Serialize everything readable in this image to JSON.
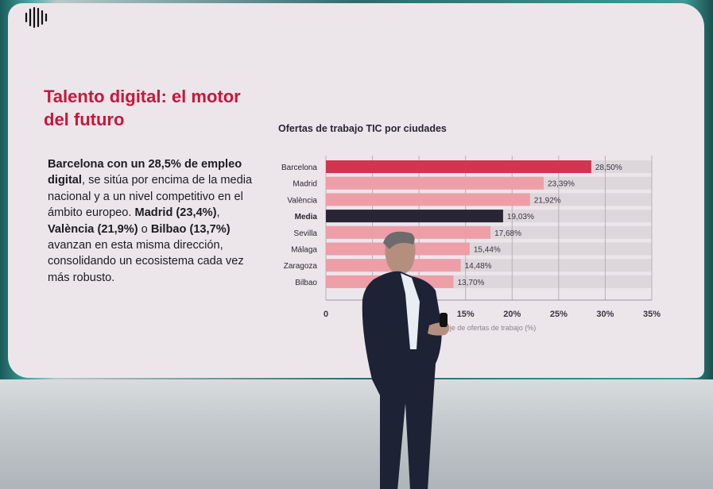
{
  "slide": {
    "title": "Talento digital: el motor del futuro",
    "paragraph": [
      {
        "text": "Barcelona con un 28,5% de empleo digital",
        "bold": true
      },
      {
        "text": ", se sitúa por encima de la media nacional y a un nivel competitivo en el ámbito europeo. ",
        "bold": false
      },
      {
        "text": "Madrid (23,4%)",
        "bold": true
      },
      {
        "text": ", ",
        "bold": false
      },
      {
        "text": "València (21,9%)",
        "bold": true
      },
      {
        "text": " o ",
        "bold": false
      },
      {
        "text": "Bilbao (13,7%)",
        "bold": true
      },
      {
        "text": " avanzan en esta misma dirección, consolidando un ecosistema cada vez más robusto.",
        "bold": false
      }
    ]
  },
  "colors": {
    "highlight": "#d3344f",
    "bar": "#ee9ea7",
    "average": "#2a2535",
    "track": "#ddd6db",
    "title": "#c8173a"
  },
  "chart_data": {
    "type": "bar",
    "orientation": "horizontal",
    "title": "Ofertas de trabajo TIC por ciudades",
    "xlabel": "je de ofertas de trabajo (%)",
    "categories": [
      "Barcelona",
      "Madrid",
      "València",
      "Media",
      "Sevilla",
      "Málaga",
      "Zaragoza",
      "Bilbao"
    ],
    "values": [
      28.5,
      23.39,
      21.92,
      19.03,
      17.68,
      15.44,
      14.48,
      13.7
    ],
    "data_labels": [
      "28,50%",
      "23,39%",
      "21,92%",
      "19,03%",
      "17,68%",
      "15,44%",
      "14,48%",
      "13,70%"
    ],
    "xlim": [
      0,
      35
    ],
    "xticks": [
      0,
      5,
      10,
      15,
      20,
      25,
      30,
      35
    ],
    "xtick_labels": [
      "0",
      "5%",
      "10%",
      "15%",
      "20%",
      "25%",
      "30%",
      "35%"
    ],
    "grid": true
  }
}
